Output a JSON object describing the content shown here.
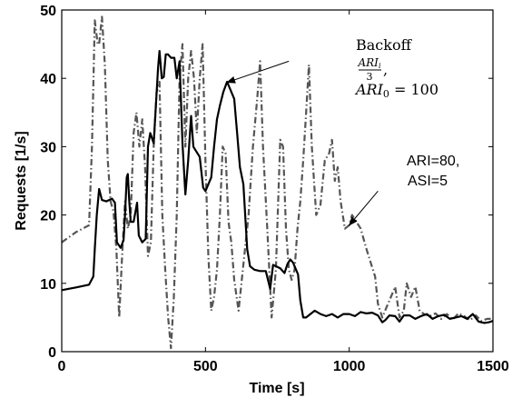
{
  "chart_data": {
    "type": "line",
    "title": "",
    "xlabel": "Time [s]",
    "ylabel": "Requests [1/s]",
    "xlim": [
      0,
      1500
    ],
    "ylim": [
      0,
      50
    ],
    "x_ticks": [
      "0",
      "500",
      "1000",
      "1500"
    ],
    "y_ticks": [
      "0",
      "10",
      "20",
      "30",
      "40",
      "50"
    ],
    "grid": false,
    "legend": "none",
    "series": [
      {
        "style": "solid",
        "color": "#000000",
        "points": [
          [
            0,
            9
          ],
          [
            50,
            9.4
          ],
          [
            95,
            9.8
          ],
          [
            110,
            11
          ],
          [
            115,
            15
          ],
          [
            122,
            20
          ],
          [
            130,
            23.8
          ],
          [
            140,
            22.2
          ],
          [
            155,
            22
          ],
          [
            175,
            22.4
          ],
          [
            185,
            21.8
          ],
          [
            192,
            16
          ],
          [
            205,
            15.2
          ],
          [
            215,
            16.3
          ],
          [
            220,
            20
          ],
          [
            226,
            25.5
          ],
          [
            230,
            26
          ],
          [
            235,
            22
          ],
          [
            240,
            19
          ],
          [
            250,
            19
          ],
          [
            262,
            21.8
          ],
          [
            268,
            17
          ],
          [
            280,
            16
          ],
          [
            292,
            16.5
          ],
          [
            300,
            30
          ],
          [
            308,
            32
          ],
          [
            320,
            30.5
          ],
          [
            335,
            41.5
          ],
          [
            340,
            44
          ],
          [
            348,
            40
          ],
          [
            355,
            40.2
          ],
          [
            362,
            43.5
          ],
          [
            370,
            43.5
          ],
          [
            380,
            43
          ],
          [
            392,
            43
          ],
          [
            400,
            40
          ],
          [
            410,
            42.5
          ],
          [
            420,
            30.5
          ],
          [
            430,
            23
          ],
          [
            440,
            28
          ],
          [
            450,
            34.5
          ],
          [
            458,
            30
          ],
          [
            465,
            29.5
          ],
          [
            480,
            28.5
          ],
          [
            492,
            24
          ],
          [
            500,
            23.5
          ],
          [
            510,
            24.5
          ],
          [
            520,
            25.5
          ],
          [
            530,
            30
          ],
          [
            540,
            34
          ],
          [
            550,
            36
          ],
          [
            562,
            38
          ],
          [
            575,
            39.5
          ],
          [
            585,
            38.5
          ],
          [
            600,
            37
          ],
          [
            610,
            32
          ],
          [
            620,
            27
          ],
          [
            632,
            24.5
          ],
          [
            645,
            15
          ],
          [
            655,
            12.5
          ],
          [
            670,
            12
          ],
          [
            690,
            11.8
          ],
          [
            710,
            11.8
          ],
          [
            725,
            9.2
          ],
          [
            735,
            12.7
          ],
          [
            745,
            12.5
          ],
          [
            760,
            12.2
          ],
          [
            775,
            11.5
          ],
          [
            785,
            12.8
          ],
          [
            795,
            13.5
          ],
          [
            805,
            13
          ],
          [
            815,
            12
          ],
          [
            822,
            11.3
          ],
          [
            830,
            7.5
          ],
          [
            840,
            5
          ],
          [
            850,
            5
          ],
          [
            865,
            5.5
          ],
          [
            880,
            6
          ],
          [
            900,
            5.5
          ],
          [
            920,
            5.2
          ],
          [
            940,
            5.5
          ],
          [
            960,
            5
          ],
          [
            980,
            5.5
          ],
          [
            1000,
            5.5
          ],
          [
            1020,
            5.2
          ],
          [
            1040,
            5.8
          ],
          [
            1060,
            5.6
          ],
          [
            1080,
            5.7
          ],
          [
            1100,
            5.3
          ],
          [
            1115,
            4.3
          ],
          [
            1125,
            4.6
          ],
          [
            1140,
            5.3
          ],
          [
            1160,
            5.2
          ],
          [
            1175,
            4.4
          ],
          [
            1190,
            5.3
          ],
          [
            1210,
            5.3
          ],
          [
            1230,
            4.8
          ],
          [
            1250,
            5.2
          ],
          [
            1270,
            5.5
          ],
          [
            1290,
            4.8
          ],
          [
            1310,
            5.2
          ],
          [
            1330,
            5.4
          ],
          [
            1350,
            4.8
          ],
          [
            1370,
            5
          ],
          [
            1390,
            5.2
          ],
          [
            1410,
            4.8
          ],
          [
            1430,
            5.5
          ],
          [
            1450,
            4.4
          ],
          [
            1470,
            4.2
          ],
          [
            1485,
            4.3
          ],
          [
            1500,
            4.5
          ]
        ]
      },
      {
        "style": "dash-dot",
        "color": "#555555",
        "points": [
          [
            0,
            16
          ],
          [
            50,
            17.5
          ],
          [
            95,
            18.5
          ],
          [
            105,
            30
          ],
          [
            115,
            48.5
          ],
          [
            125,
            45
          ],
          [
            130,
            45
          ],
          [
            140,
            49
          ],
          [
            150,
            42
          ],
          [
            160,
            28
          ],
          [
            170,
            22
          ],
          [
            180,
            20.5
          ],
          [
            190,
            15
          ],
          [
            200,
            5
          ],
          [
            210,
            14
          ],
          [
            220,
            22
          ],
          [
            230,
            18
          ],
          [
            240,
            20
          ],
          [
            250,
            32
          ],
          [
            260,
            35
          ],
          [
            270,
            30
          ],
          [
            280,
            34
          ],
          [
            290,
            27
          ],
          [
            300,
            14
          ],
          [
            310,
            16
          ],
          [
            320,
            30
          ],
          [
            330,
            38
          ],
          [
            340,
            39.5
          ],
          [
            350,
            20
          ],
          [
            360,
            12
          ],
          [
            370,
            5
          ],
          [
            380,
            0.5
          ],
          [
            390,
            8
          ],
          [
            400,
            20
          ],
          [
            410,
            40
          ],
          [
            420,
            45
          ],
          [
            430,
            30
          ],
          [
            440,
            40
          ],
          [
            450,
            44
          ],
          [
            460,
            40
          ],
          [
            470,
            32
          ],
          [
            480,
            40
          ],
          [
            490,
            45
          ],
          [
            500,
            28
          ],
          [
            510,
            14
          ],
          [
            520,
            6
          ],
          [
            530,
            8
          ],
          [
            540,
            12
          ],
          [
            550,
            20
          ],
          [
            560,
            30
          ],
          [
            570,
            29
          ],
          [
            580,
            19
          ],
          [
            590,
            16
          ],
          [
            600,
            10.5
          ],
          [
            615,
            6
          ],
          [
            630,
            12
          ],
          [
            650,
            20
          ],
          [
            665,
            30
          ],
          [
            680,
            37
          ],
          [
            690,
            42.5
          ],
          [
            700,
            30
          ],
          [
            715,
            18
          ],
          [
            730,
            5
          ],
          [
            745,
            12
          ],
          [
            760,
            31
          ],
          [
            770,
            30
          ],
          [
            780,
            18
          ],
          [
            790,
            12
          ],
          [
            800,
            10.5
          ],
          [
            810,
            12
          ],
          [
            820,
            18
          ],
          [
            830,
            22
          ],
          [
            840,
            28
          ],
          [
            850,
            35
          ],
          [
            860,
            42
          ],
          [
            870,
            30
          ],
          [
            885,
            20
          ],
          [
            900,
            21.5
          ],
          [
            915,
            28
          ],
          [
            930,
            29
          ],
          [
            940,
            31
          ],
          [
            950,
            25
          ],
          [
            960,
            27
          ],
          [
            970,
            22
          ],
          [
            985,
            18
          ],
          [
            1000,
            18.5
          ],
          [
            1010,
            20
          ],
          [
            1025,
            19
          ],
          [
            1040,
            18
          ],
          [
            1060,
            15
          ],
          [
            1075,
            13
          ],
          [
            1090,
            11
          ],
          [
            1100,
            7
          ],
          [
            1115,
            5
          ],
          [
            1130,
            6.5
          ],
          [
            1145,
            8
          ],
          [
            1160,
            9.5
          ],
          [
            1175,
            5
          ],
          [
            1190,
            6
          ],
          [
            1200,
            10
          ],
          [
            1215,
            8
          ],
          [
            1230,
            9.5
          ],
          [
            1245,
            6
          ],
          [
            1260,
            5.5
          ],
          [
            1280,
            5.2
          ],
          [
            1300,
            5.6
          ],
          [
            1320,
            4.8
          ],
          [
            1340,
            5.5
          ],
          [
            1360,
            4.7
          ],
          [
            1380,
            5.6
          ],
          [
            1400,
            5.2
          ],
          [
            1420,
            4.6
          ],
          [
            1440,
            5.3
          ],
          [
            1460,
            4.5
          ],
          [
            1480,
            4.8
          ],
          [
            1500,
            4.8
          ]
        ]
      }
    ],
    "annotations": [
      {
        "id": "backoff",
        "line1": "Backoff",
        "fraction_numerator": "ARI",
        "numerator_subscript": "i",
        "fraction_denominator": "3",
        "fraction_suffix": ",",
        "line3_var": "ARI",
        "line3_sub": "0",
        "line3_rest": " = 100",
        "arrow_from": [
          790,
          42.5
        ],
        "arrow_to": [
          575,
          39.4
        ]
      },
      {
        "id": "ari",
        "line1": "ARI=80,",
        "line2": "ASI=5",
        "arrow_from": [
          1100,
          23.5
        ],
        "arrow_to": [
          1000,
          18.5
        ]
      }
    ]
  }
}
